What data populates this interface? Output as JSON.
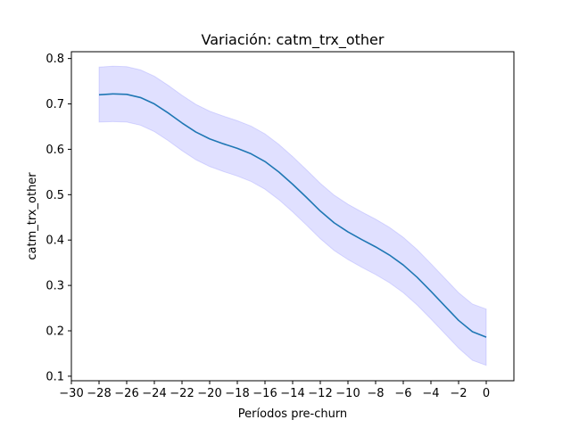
{
  "chart_data": {
    "type": "line",
    "title": "Variación: catm_trx_other",
    "xlabel": "Períodos pre-churn",
    "ylabel": "catm_trx_other",
    "xlim": [
      -30,
      2
    ],
    "ylim": [
      0.09,
      0.815
    ],
    "x_ticks": [
      -30,
      -28,
      -26,
      -24,
      -22,
      -20,
      -18,
      -16,
      -14,
      -12,
      -10,
      -8,
      -6,
      -4,
      -2,
      0
    ],
    "x_tick_labels": [
      "−30",
      "−28",
      "−26",
      "−24",
      "−22",
      "−20",
      "−18",
      "−16",
      "−14",
      "−12",
      "−10",
      "−8",
      "−6",
      "−4",
      "−2",
      "0"
    ],
    "y_ticks": [
      0.1,
      0.2,
      0.3,
      0.4,
      0.5,
      0.6,
      0.7,
      0.8
    ],
    "y_tick_labels": [
      "0.1",
      "0.2",
      "0.3",
      "0.4",
      "0.5",
      "0.6",
      "0.7",
      "0.8"
    ],
    "grid": false,
    "series": [
      {
        "line_color": "#1f77b4",
        "band_color": "#0000ff",
        "x": [
          -28,
          -27,
          -26,
          -25,
          -24,
          -23,
          -22,
          -21,
          -20,
          -19,
          -18,
          -17,
          -16,
          -15,
          -14,
          -13,
          -12,
          -11,
          -10,
          -9,
          -8,
          -7,
          -6,
          -5,
          -4,
          -3,
          -2,
          -1,
          0
        ],
        "y": [
          0.72,
          0.722,
          0.721,
          0.714,
          0.7,
          0.68,
          0.658,
          0.638,
          0.623,
          0.612,
          0.602,
          0.59,
          0.573,
          0.55,
          0.523,
          0.494,
          0.464,
          0.438,
          0.418,
          0.401,
          0.385,
          0.367,
          0.345,
          0.318,
          0.287,
          0.255,
          0.223,
          0.198,
          0.186
        ],
        "lower": [
          0.66,
          0.661,
          0.66,
          0.653,
          0.639,
          0.619,
          0.597,
          0.577,
          0.562,
          0.551,
          0.541,
          0.529,
          0.512,
          0.489,
          0.462,
          0.433,
          0.403,
          0.377,
          0.357,
          0.34,
          0.324,
          0.306,
          0.284,
          0.257,
          0.226,
          0.194,
          0.162,
          0.135,
          0.124
        ],
        "upper": [
          0.781,
          0.783,
          0.782,
          0.775,
          0.761,
          0.741,
          0.719,
          0.699,
          0.684,
          0.673,
          0.663,
          0.651,
          0.634,
          0.611,
          0.584,
          0.555,
          0.525,
          0.499,
          0.479,
          0.462,
          0.446,
          0.428,
          0.406,
          0.379,
          0.348,
          0.316,
          0.284,
          0.259,
          0.248
        ]
      }
    ]
  }
}
